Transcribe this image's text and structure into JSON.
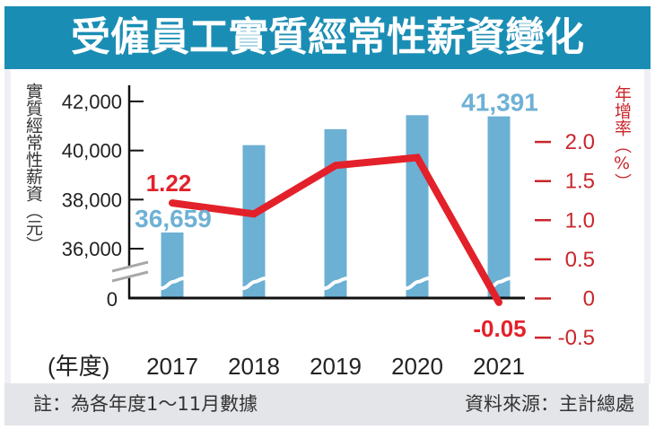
{
  "title": "受僱員工實質經常性薪資變化",
  "footer": {
    "note": "註：為各年度1～11月數據",
    "source": "資料來源：主計總處"
  },
  "colors": {
    "title_bg": "#1a8db4",
    "bar": "#6cb0d4",
    "bar_label": "#6eb1d5",
    "line": "#e3212a",
    "right_axis": "#c9262c",
    "footer_bg": "#e4e5e9"
  },
  "chart_data": {
    "type": "bar",
    "combo": "bar+line",
    "title": "受僱員工實質經常性薪資變化",
    "categories": [
      "2017",
      "2018",
      "2019",
      "2020",
      "2021"
    ],
    "xlabel": "(年度)",
    "ylabel": "實質經常性薪資（元）",
    "ylabel_right": "年增率（%）",
    "series": [
      {
        "name": "實質經常性薪資（元）",
        "type": "bar",
        "axis": "left",
        "values": [
          36659,
          40220,
          40870,
          41440,
          41391
        ],
        "labels": [
          {
            "index": 0,
            "text": "36,659"
          },
          {
            "index": 4,
            "text": "41,391"
          }
        ]
      },
      {
        "name": "年增率（%）",
        "type": "line",
        "axis": "right",
        "values": [
          1.22,
          1.08,
          1.7,
          1.8,
          -0.05
        ],
        "labels": [
          {
            "index": 0,
            "text": "1.22",
            "position": "above"
          },
          {
            "index": 4,
            "text": "-0.05",
            "position": "below"
          }
        ]
      }
    ],
    "y_left": {
      "range": [
        36000,
        42000
      ],
      "axis_break": true,
      "zero_label": "0",
      "ticks": [
        {
          "value": 42000,
          "label": "42,000"
        },
        {
          "value": 40000,
          "label": "40,000"
        },
        {
          "value": 38000,
          "label": "38,000"
        },
        {
          "value": 36000,
          "label": "36,000"
        }
      ]
    },
    "y_right": {
      "range": [
        -0.5,
        2.0
      ],
      "ticks": [
        {
          "value": 2.0,
          "label": "2.0"
        },
        {
          "value": 1.5,
          "label": "1.5"
        },
        {
          "value": 1.0,
          "label": "1.0"
        },
        {
          "value": 0.5,
          "label": "0.5"
        },
        {
          "value": 0,
          "label": "0"
        },
        {
          "value": -0.5,
          "label": "-0.5"
        }
      ]
    },
    "grid": false,
    "legend": "none"
  }
}
